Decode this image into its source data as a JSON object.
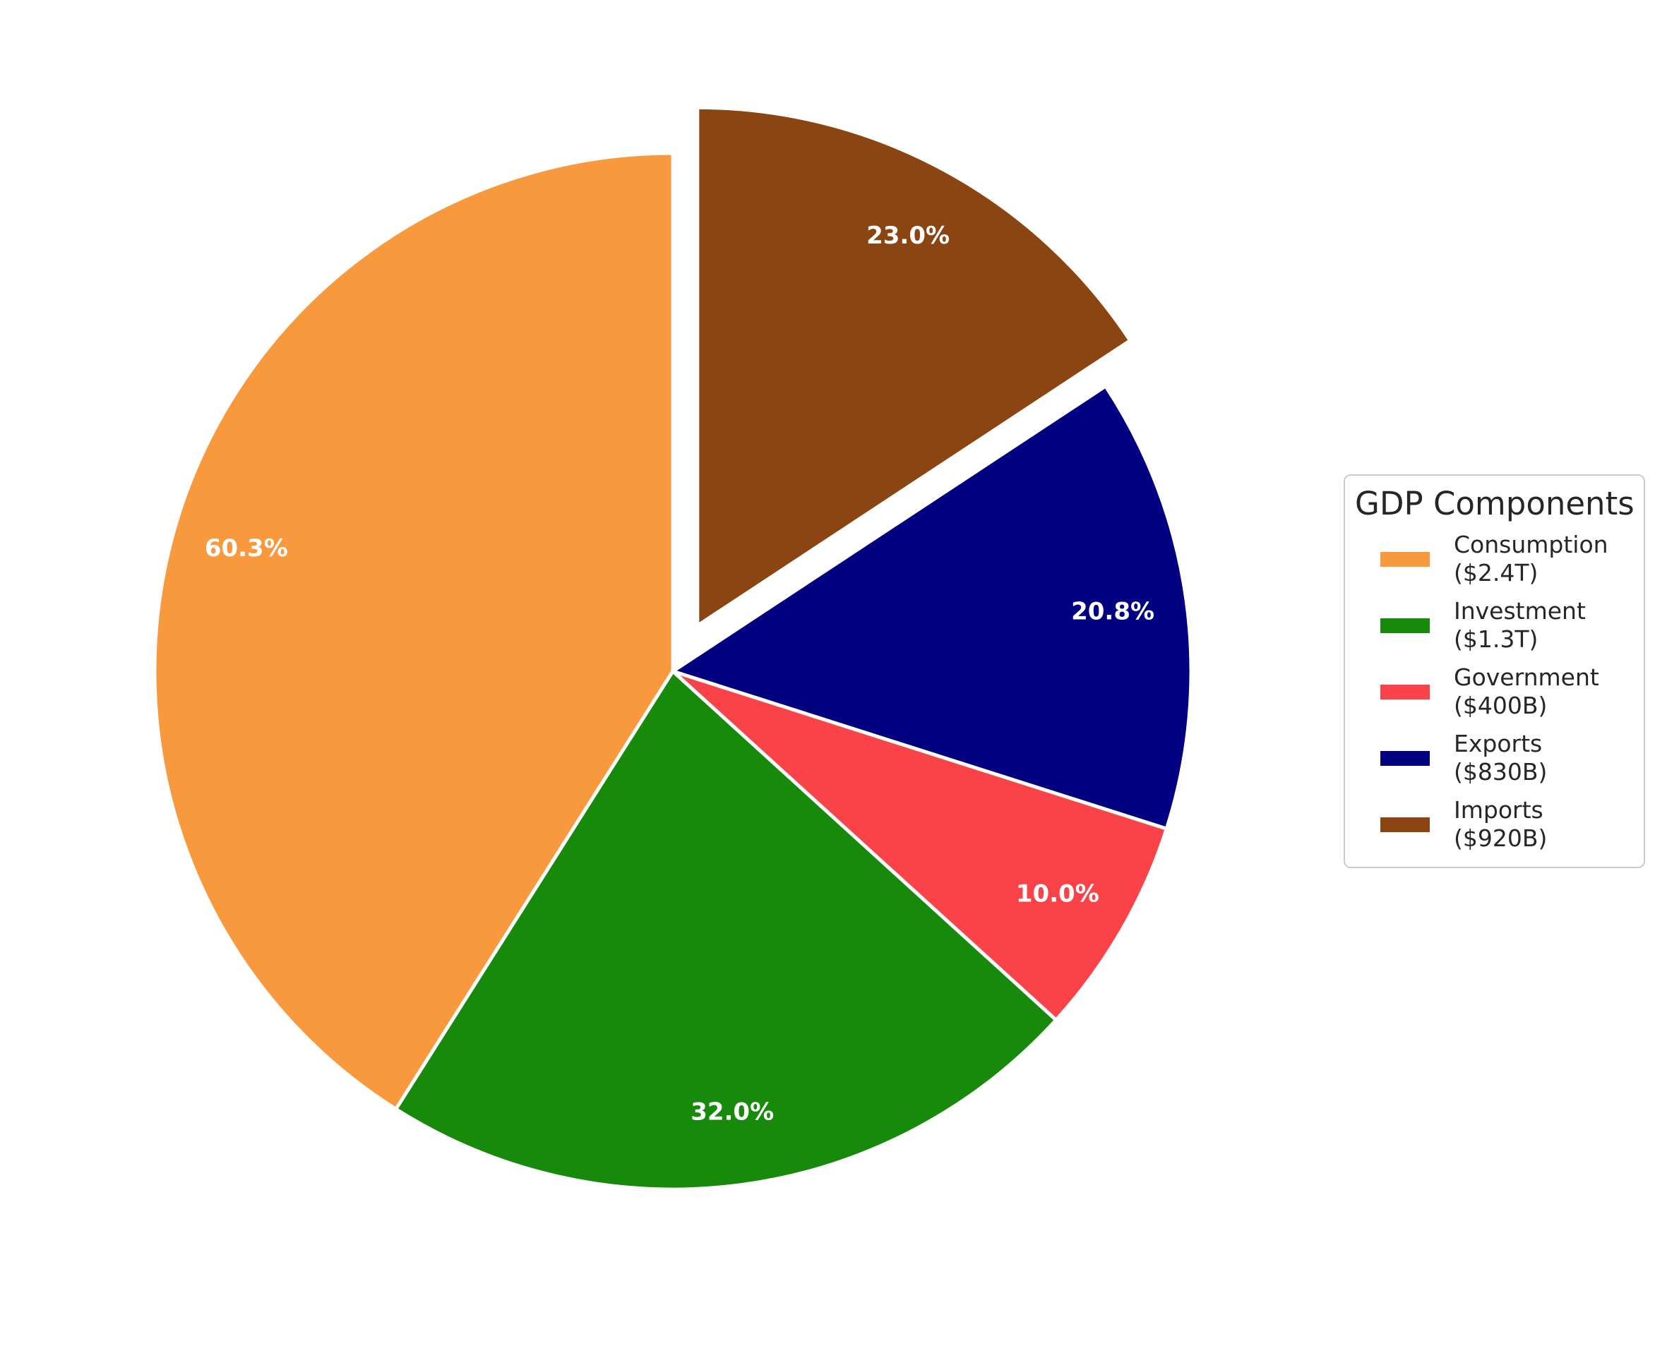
{
  "chart_data": {
    "type": "pie",
    "background": "#FFFFFF",
    "start_angle_deg": 90,
    "direction": "counterclockwise",
    "slice_edge_color": "#FFFFFF",
    "pct_label_color": "#FFFFFF",
    "legend": {
      "title": "GDP Components",
      "position": "center right"
    },
    "slices": [
      {
        "name": "Consumption",
        "amount_label": "($2.4T)",
        "value_billions": 2400,
        "pct_label": "60.3%",
        "color": "#F8993D",
        "explode": 0
      },
      {
        "name": "Investment",
        "amount_label": "($1.3T)",
        "value_billions": 1300,
        "pct_label": "32.0%",
        "color": "#178A0B",
        "explode": 0
      },
      {
        "name": "Government",
        "amount_label": "($400B)",
        "value_billions": 400,
        "pct_label": "10.0%",
        "color": "#FA4349",
        "explode": 0
      },
      {
        "name": "Exports",
        "amount_label": "($830B)",
        "value_billions": 830,
        "pct_label": "20.8%",
        "color": "#000080",
        "explode": 0
      },
      {
        "name": "Imports",
        "amount_label": "($920B)",
        "value_billions": 920,
        "pct_label": "23.0%",
        "color": "#8B4513",
        "explode": 0.1
      }
    ]
  }
}
